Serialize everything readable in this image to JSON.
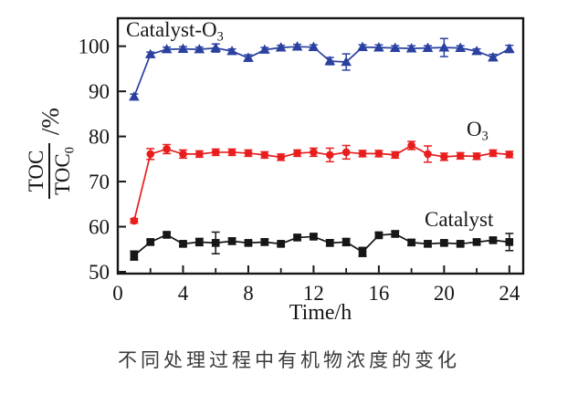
{
  "caption": "不同处理过程中有机物浓度的变化",
  "chart_data": {
    "type": "line",
    "title": "",
    "xlabel": "Time/h",
    "ylabel": "TOC/TOC0 /%",
    "ylabel_parts": {
      "numerator": "TOC",
      "denominator_main": "TOC",
      "denominator_sub": "0",
      "unit": "/%"
    },
    "axis_color": "#161616",
    "grid": false,
    "legend_position": "inline-labels",
    "xlim": [
      0,
      24.85
    ],
    "ylim": [
      49.6,
      106.2
    ],
    "x_ticks": [
      0,
      4,
      8,
      12,
      16,
      20,
      24
    ],
    "x_minor_ticks": [
      2,
      6,
      10,
      14,
      18,
      22
    ],
    "y_ticks": [
      50,
      60,
      70,
      80,
      90,
      100
    ],
    "x": [
      1,
      2,
      3,
      4,
      5,
      6,
      7,
      8,
      9,
      10,
      11,
      12,
      13,
      14,
      15,
      16,
      17,
      18,
      19,
      20,
      21,
      22,
      23,
      24
    ],
    "series": [
      {
        "id": "catalyst-o3",
        "label_main": "Catalyst-O",
        "label_sub": "3",
        "marker": "triangle",
        "color": "#2a41a0",
        "values": [
          88.8,
          98.2,
          99.3,
          99.4,
          99.3,
          99.6,
          98.9,
          97.4,
          99.2,
          99.7,
          99.9,
          99.8,
          96.7,
          96.5,
          99.8,
          99.7,
          99.6,
          99.5,
          99.6,
          99.7,
          99.6,
          98.9,
          97.5,
          99.4
        ],
        "errors": [
          0.6,
          0.5,
          0.5,
          0.5,
          0.5,
          0.9,
          0.5,
          0.7,
          0.5,
          0.5,
          0.5,
          0.5,
          0.8,
          1.8,
          0.5,
          0.6,
          0.5,
          0.6,
          0.5,
          2.0,
          0.5,
          0.5,
          0.7,
          0.8
        ]
      },
      {
        "id": "o3",
        "label_main": "O",
        "label_sub": "3",
        "marker": "circle",
        "color": "#e81e1e",
        "values": [
          61.3,
          76.1,
          77.2,
          76.1,
          76.1,
          76.5,
          76.5,
          76.3,
          75.9,
          75.4,
          76.3,
          76.5,
          75.9,
          76.5,
          76.2,
          76.2,
          75.9,
          78.0,
          76.1,
          75.5,
          75.7,
          75.6,
          76.3,
          76.0
        ],
        "errors": [
          0.5,
          1.2,
          1.0,
          0.9,
          0.7,
          0.7,
          0.7,
          0.7,
          0.7,
          0.7,
          0.7,
          0.9,
          1.5,
          1.5,
          0.7,
          0.7,
          0.7,
          0.9,
          1.8,
          0.8,
          0.7,
          0.7,
          0.7,
          0.7
        ]
      },
      {
        "id": "catalyst",
        "label_main": "Catalyst",
        "label_sub": "",
        "marker": "square",
        "color": "#161616",
        "values": [
          53.6,
          56.6,
          58.2,
          56.2,
          56.6,
          56.4,
          56.8,
          56.4,
          56.6,
          56.2,
          57.6,
          57.8,
          56.4,
          56.6,
          54.4,
          58.1,
          58.4,
          56.5,
          56.2,
          56.4,
          56.2,
          56.6,
          57.0,
          56.6
        ],
        "errors": [
          1.0,
          0.5,
          0.5,
          0.5,
          0.8,
          2.4,
          0.7,
          0.5,
          0.7,
          0.5,
          0.5,
          0.5,
          0.7,
          0.8,
          1.0,
          0.5,
          0.6,
          0.6,
          0.6,
          0.5,
          0.5,
          0.5,
          0.5,
          1.9
        ]
      }
    ]
  }
}
